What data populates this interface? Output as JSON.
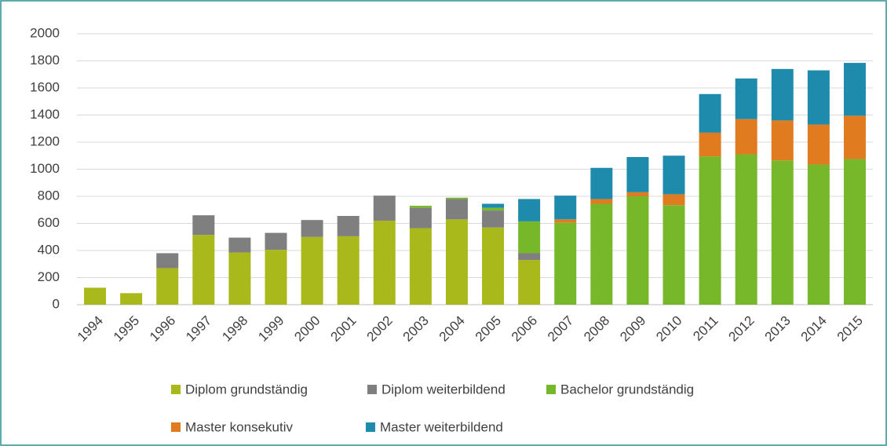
{
  "chart_data": {
    "type": "bar",
    "stacked": true,
    "categories": [
      "1994",
      "1995",
      "1996",
      "1997",
      "1998",
      "1999",
      "2000",
      "2001",
      "2002",
      "2003",
      "2004",
      "2005",
      "2006",
      "2007",
      "2008",
      "2009",
      "2010",
      "2011",
      "2012",
      "2013",
      "2014",
      "2015"
    ],
    "series": [
      {
        "name": "Diplom grundständig",
        "color": "#a9b81b",
        "values": [
          125,
          85,
          270,
          515,
          385,
          405,
          500,
          505,
          620,
          565,
          630,
          570,
          330,
          0,
          0,
          0,
          0,
          0,
          0,
          0,
          0,
          0
        ]
      },
      {
        "name": "Diplom weiterbildend",
        "color": "#7f7f7f",
        "values": [
          0,
          0,
          110,
          145,
          110,
          125,
          125,
          150,
          185,
          150,
          150,
          125,
          50,
          0,
          0,
          0,
          0,
          0,
          0,
          0,
          0,
          0
        ]
      },
      {
        "name": "Bachelor grundständig",
        "color": "#76b82a",
        "values": [
          0,
          0,
          0,
          0,
          0,
          0,
          0,
          0,
          0,
          15,
          10,
          20,
          235,
          605,
          745,
          800,
          735,
          1095,
          1110,
          1065,
          1035,
          1075
        ]
      },
      {
        "name": "Master konsekutiv",
        "color": "#e07b1f",
        "values": [
          0,
          0,
          0,
          0,
          0,
          0,
          0,
          0,
          0,
          0,
          0,
          0,
          0,
          25,
          35,
          30,
          80,
          175,
          260,
          295,
          295,
          320
        ]
      },
      {
        "name": "Master weiterbildend",
        "color": "#1e8aac",
        "values": [
          0,
          0,
          0,
          0,
          0,
          0,
          0,
          0,
          0,
          0,
          0,
          30,
          165,
          175,
          230,
          260,
          285,
          285,
          300,
          380,
          400,
          390
        ]
      }
    ],
    "ylim": [
      0,
      2000
    ],
    "yticks": [
      0,
      200,
      400,
      600,
      800,
      1000,
      1200,
      1400,
      1600,
      1800,
      2000
    ],
    "grid": true
  }
}
